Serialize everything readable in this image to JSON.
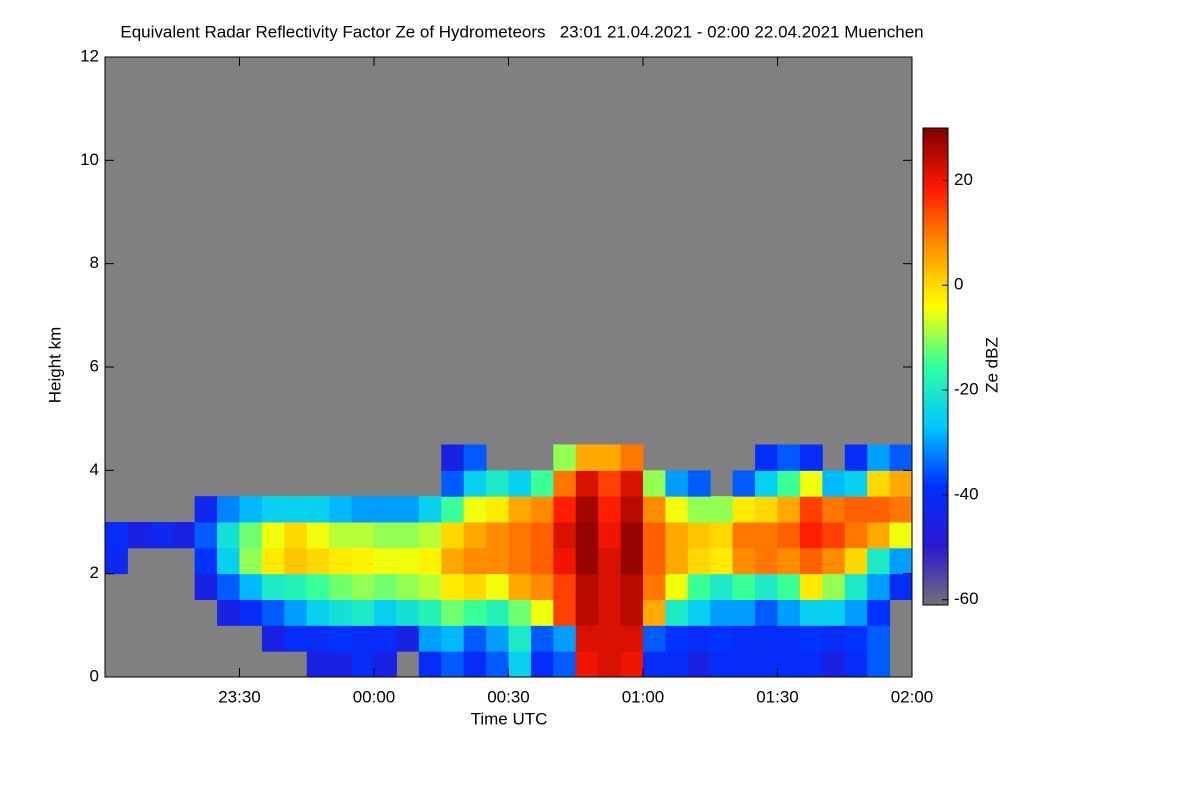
{
  "chart_data": {
    "type": "heatmap",
    "title": "Equivalent Radar Reflectivity Factor Ze of Hydrometeors   23:01 21.04.2021 - 02:00 22.04.2021 Muenchen",
    "x_label": "Time UTC",
    "y_label": "Height km",
    "colorbar_label": "Ze dBZ",
    "background": "#808080",
    "xlim": [
      0,
      180
    ],
    "xticks": [
      {
        "value": 30,
        "label": "23:30"
      },
      {
        "value": 60,
        "label": "00:00"
      },
      {
        "value": 90,
        "label": "00:30"
      },
      {
        "value": 120,
        "label": "01:00"
      },
      {
        "value": 150,
        "label": "01:30"
      },
      {
        "value": 180,
        "label": "02:00"
      }
    ],
    "ylim": [
      0,
      12
    ],
    "yticks": [
      0,
      2,
      4,
      6,
      8,
      10,
      12
    ],
    "clim": [
      -61,
      30
    ],
    "cticks": [
      -60,
      -40,
      -20,
      0,
      20
    ],
    "colormap": [
      "#707078",
      "#2a18d0",
      "#0030ff",
      "#00c8ff",
      "#30ffa0",
      "#ffff00",
      "#ff9400",
      "#ff1800",
      "#800000"
    ],
    "x": [
      2.5,
      7.5,
      12.5,
      17.5,
      22.5,
      27.5,
      32.5,
      37.5,
      42.5,
      47.5,
      52.5,
      57.5,
      62.5,
      67.5,
      72.5,
      77.5,
      82.5,
      87.5,
      92.5,
      97.5,
      102.5,
      107.5,
      112.5,
      117.5,
      122.5,
      127.5,
      132.5,
      137.5,
      142.5,
      147.5,
      152.5,
      157.5,
      162.5,
      167.5,
      172.5,
      177.5
    ],
    "y": [
      0.25,
      0.75,
      1.25,
      1.75,
      2.25,
      2.75,
      3.25,
      3.75,
      4.25
    ],
    "z": [
      [
        null,
        null,
        null,
        null,
        null,
        null,
        null,
        null,
        null,
        -45,
        -45,
        -40,
        -45,
        null,
        -40,
        -35,
        -40,
        -35,
        -25,
        -40,
        -35,
        20,
        22,
        20,
        -40,
        -40,
        -45,
        -40,
        -40,
        -40,
        -40,
        -40,
        -45,
        -40,
        -35,
        null
      ],
      [
        null,
        null,
        null,
        null,
        null,
        null,
        null,
        -45,
        -40,
        -40,
        -38,
        -40,
        -40,
        -45,
        -30,
        -28,
        -35,
        -30,
        -20,
        -35,
        -30,
        22,
        22,
        22,
        -35,
        -38,
        -40,
        -38,
        -40,
        -40,
        -40,
        -38,
        -40,
        -38,
        -35,
        null
      ],
      [
        null,
        null,
        null,
        null,
        null,
        -45,
        -40,
        -35,
        -30,
        -25,
        -22,
        -20,
        -25,
        -22,
        -18,
        -12,
        -15,
        -18,
        -12,
        -5,
        15,
        25,
        22,
        25,
        5,
        -20,
        -25,
        -30,
        -30,
        -35,
        -30,
        -25,
        -25,
        -30,
        -38,
        null
      ],
      [
        null,
        null,
        null,
        null,
        -45,
        -35,
        -28,
        -20,
        -18,
        -15,
        -12,
        -10,
        -12,
        -10,
        -8,
        -2,
        0,
        -5,
        5,
        8,
        15,
        25,
        22,
        25,
        10,
        -5,
        -15,
        -20,
        -15,
        -20,
        -15,
        -2,
        -10,
        -20,
        -30,
        -40
      ],
      [
        -42,
        null,
        null,
        null,
        -38,
        -25,
        -10,
        -2,
        2,
        0,
        -2,
        -3,
        -5,
        -5,
        -3,
        5,
        8,
        8,
        10,
        12,
        20,
        28,
        22,
        28,
        12,
        5,
        0,
        -2,
        8,
        10,
        8,
        12,
        8,
        0,
        -20,
        -30
      ],
      [
        -40,
        -45,
        -42,
        -45,
        -35,
        -22,
        -12,
        -5,
        0,
        -5,
        -8,
        -8,
        -10,
        -10,
        -8,
        0,
        5,
        8,
        10,
        12,
        22,
        28,
        20,
        28,
        12,
        5,
        2,
        0,
        10,
        10,
        12,
        18,
        15,
        10,
        5,
        -5
      ],
      [
        null,
        null,
        null,
        null,
        -42,
        -32,
        -28,
        -25,
        -25,
        -25,
        -28,
        -30,
        -30,
        -30,
        -25,
        -15,
        -5,
        -2,
        5,
        8,
        18,
        27,
        18,
        25,
        8,
        -5,
        -10,
        -10,
        -2,
        0,
        5,
        15,
        10,
        12,
        12,
        10
      ],
      [
        null,
        null,
        null,
        null,
        null,
        null,
        null,
        null,
        null,
        null,
        null,
        null,
        null,
        null,
        null,
        -35,
        -25,
        -20,
        -25,
        -15,
        10,
        22,
        15,
        22,
        -10,
        -30,
        -35,
        null,
        -35,
        -25,
        -15,
        -5,
        -28,
        -25,
        0,
        5
      ],
      [
        null,
        null,
        null,
        null,
        null,
        null,
        null,
        null,
        null,
        null,
        null,
        null,
        null,
        null,
        null,
        -45,
        -35,
        null,
        null,
        null,
        -10,
        5,
        5,
        10,
        null,
        null,
        null,
        null,
        null,
        -40,
        -35,
        -40,
        null,
        -40,
        -30,
        -35
      ]
    ]
  }
}
